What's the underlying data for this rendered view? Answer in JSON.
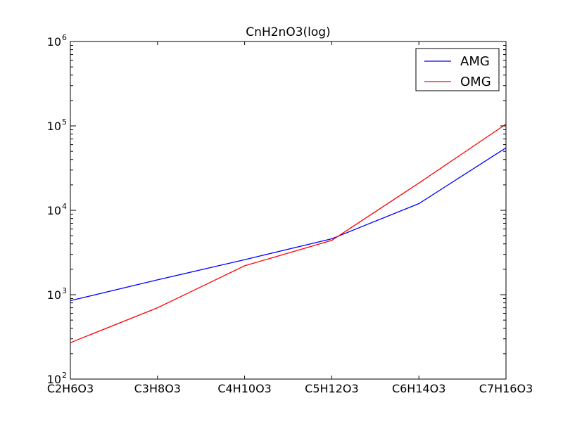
{
  "chart_data": {
    "type": "line",
    "title": "CnH2nO3(log)",
    "xlabel": "",
    "ylabel": "",
    "categories": [
      "C2H6O3",
      "C3H8O3",
      "C4H10O3",
      "C5H12O3",
      "C6H14O3",
      "C7H16O3"
    ],
    "yscale": "log",
    "ylim": [
      100,
      1000000
    ],
    "y_ticks": [
      {
        "value": 100,
        "base": "10",
        "exp": "2"
      },
      {
        "value": 1000,
        "base": "10",
        "exp": "3"
      },
      {
        "value": 10000,
        "base": "10",
        "exp": "4"
      },
      {
        "value": 100000,
        "base": "10",
        "exp": "5"
      },
      {
        "value": 1000000,
        "base": "10",
        "exp": "6"
      }
    ],
    "grid": false,
    "legend_position": "top-right",
    "series": [
      {
        "name": "AMG",
        "color": "#0000ff",
        "values": [
          850,
          1500,
          2600,
          4600,
          12000,
          55000
        ]
      },
      {
        "name": "OMG",
        "color": "#ff0000",
        "values": [
          270,
          700,
          2200,
          4400,
          21000,
          105000
        ]
      }
    ]
  }
}
